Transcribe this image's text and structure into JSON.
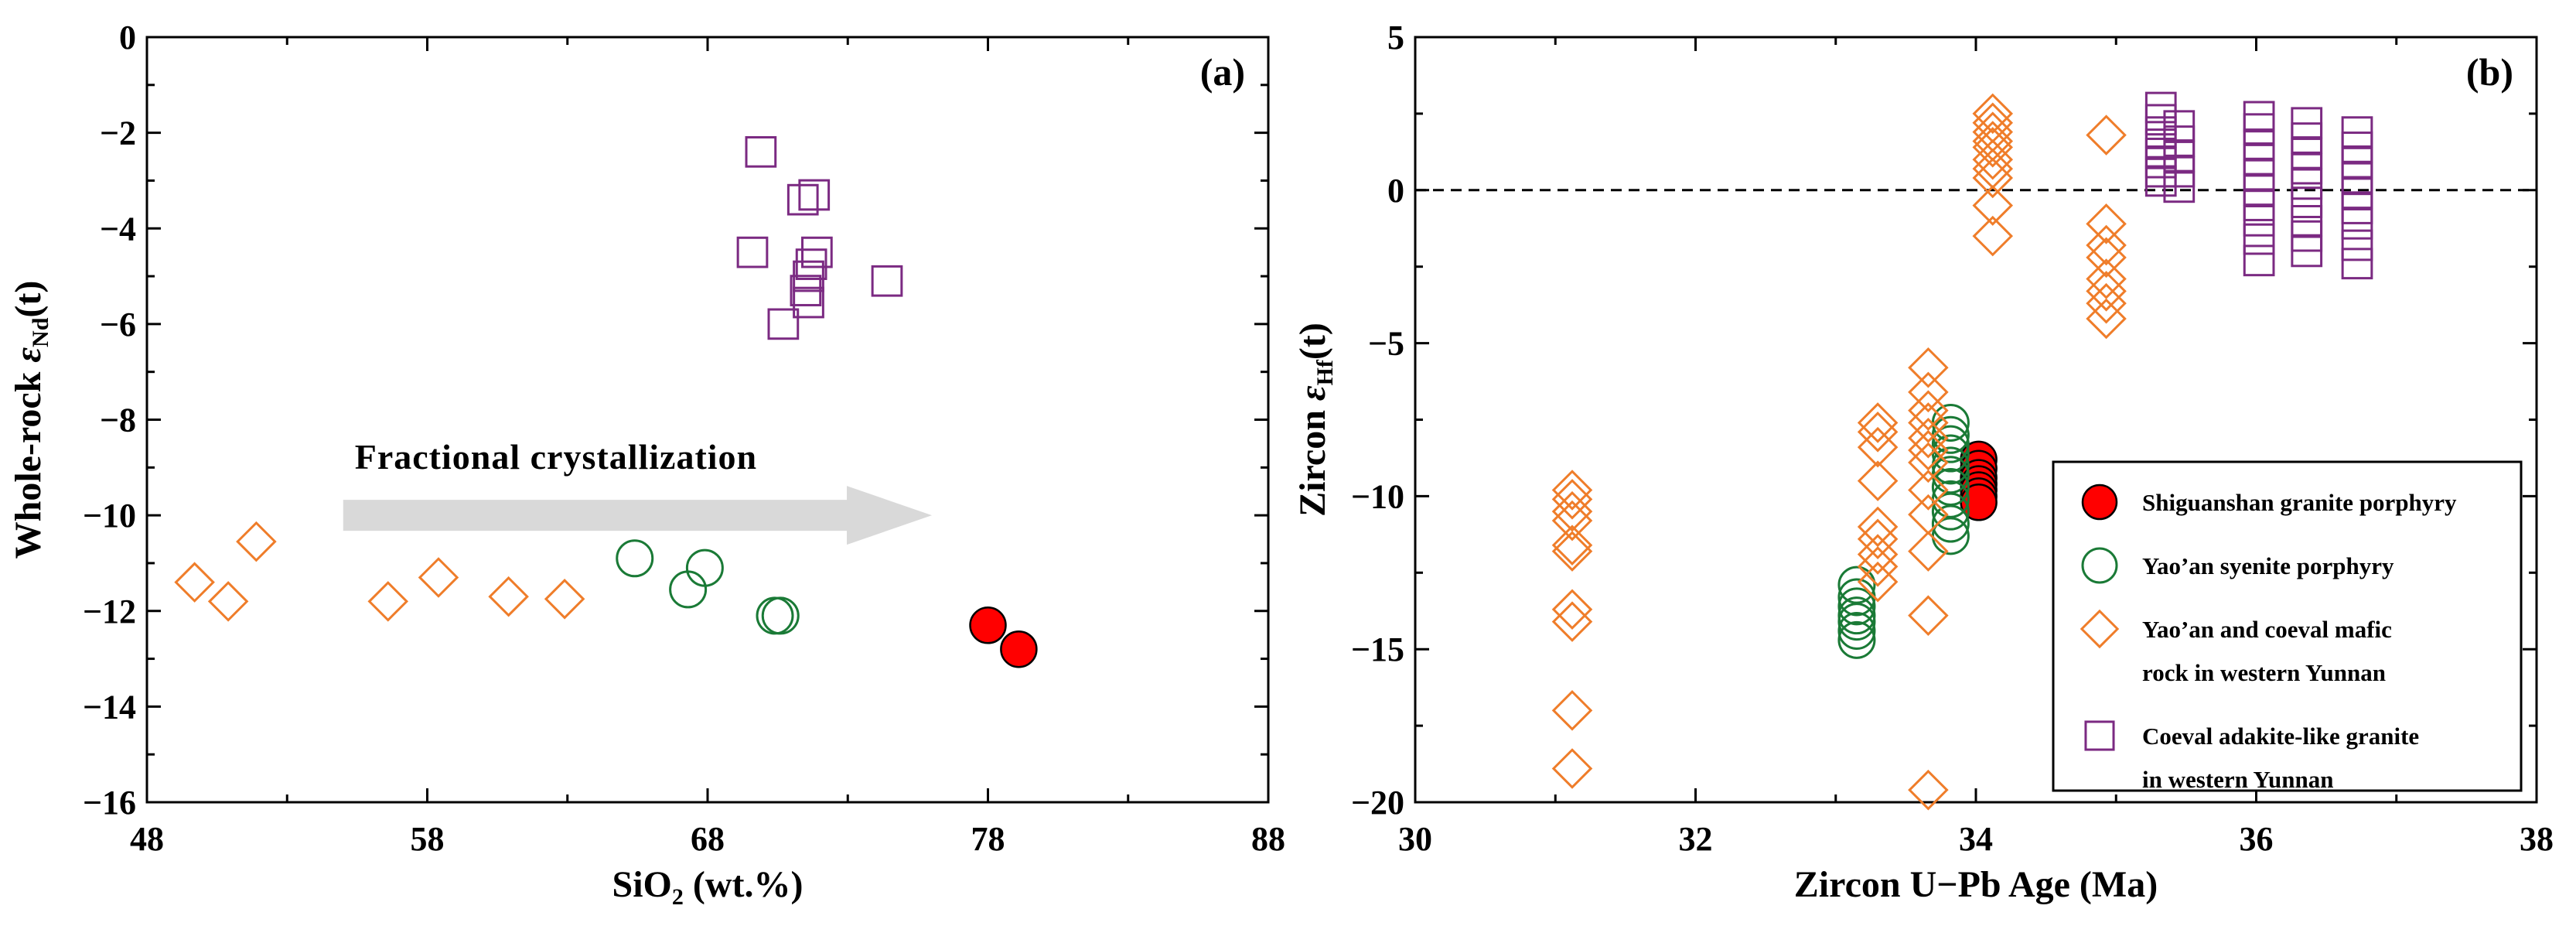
{
  "chart_data": [
    {
      "panel": "a",
      "type": "scatter",
      "panel_label": "(a)",
      "xlabel": {
        "main": "SiO",
        "sub": "2",
        "tail": " (wt.%)"
      },
      "ylabel": {
        "main": "Whole-rock ",
        "eps": "ε",
        "sub": "Nd",
        "tail": "(t)"
      },
      "xlim": [
        48,
        88
      ],
      "ylim": [
        -16,
        0
      ],
      "xticks": [
        48,
        58,
        68,
        78,
        88
      ],
      "yticks": [
        0,
        -2,
        -4,
        -6,
        -8,
        -10,
        -12,
        -14,
        -16
      ],
      "ytick_labels": [
        "0",
        "−2",
        "−4",
        "−6",
        "−8",
        "−10",
        "−12",
        "−14",
        "−16"
      ],
      "annotation": {
        "text": "Fractional crystallization",
        "arrow_from": [
          55,
          -10
        ],
        "arrow_to": [
          76,
          -10
        ]
      },
      "series": [
        {
          "name": "Shiguanshan granite porphyry",
          "marker": "filled-circle",
          "color": "#ff0000",
          "points": [
            [
              78.0,
              -12.3
            ],
            [
              79.1,
              -12.8
            ]
          ]
        },
        {
          "name": "Yao’an syenite porphyry",
          "marker": "circle",
          "color": "#1a7a36",
          "points": [
            [
              65.4,
              -10.9
            ],
            [
              67.3,
              -11.55
            ],
            [
              67.9,
              -11.1
            ],
            [
              70.4,
              -12.1
            ],
            [
              70.6,
              -12.1
            ]
          ]
        },
        {
          "name": "Yao’an and coeval mafic rock in western Yunnan",
          "marker": "diamond",
          "color": "#ef7d2a",
          "points": [
            [
              49.7,
              -11.4
            ],
            [
              50.9,
              -11.8
            ],
            [
              51.9,
              -10.55
            ],
            [
              56.6,
              -11.8
            ],
            [
              58.4,
              -11.3
            ],
            [
              60.9,
              -11.7
            ],
            [
              62.9,
              -11.75
            ]
          ]
        },
        {
          "name": "Coeval adakite-like granite in western Yunnan",
          "marker": "square",
          "color": "#7b2a82",
          "points": [
            [
              69.9,
              -2.4
            ],
            [
              71.4,
              -3.4
            ],
            [
              71.8,
              -3.3
            ],
            [
              69.6,
              -4.5
            ],
            [
              71.9,
              -4.5
            ],
            [
              71.7,
              -4.75
            ],
            [
              71.6,
              -5.0
            ],
            [
              71.5,
              -5.3
            ],
            [
              71.6,
              -5.55
            ],
            [
              74.4,
              -5.1
            ],
            [
              70.7,
              -6.0
            ]
          ]
        }
      ]
    },
    {
      "panel": "b",
      "type": "scatter",
      "panel_label": "(b)",
      "xlabel": {
        "main": "Zircon U−Pb Age (Ma)"
      },
      "ylabel": {
        "main": "Zircon ",
        "eps": "ε",
        "sub": "Hf",
        "tail": "(t)"
      },
      "xlim": [
        30,
        38
      ],
      "ylim": [
        -20,
        5
      ],
      "xticks": [
        30,
        32,
        34,
        36,
        38
      ],
      "yticks": [
        5,
        0,
        -5,
        -10,
        -15,
        -20
      ],
      "ytick_labels": [
        "5",
        "0",
        "−5",
        "−10",
        "−15",
        "−20"
      ],
      "reference_line": {
        "y": 0,
        "style": "dashed"
      },
      "legend": {
        "position": "bottom-right",
        "entries": [
          {
            "marker": "filled-circle",
            "color": "#ff0000",
            "lines": [
              "Shiguanshan granite porphyry"
            ]
          },
          {
            "marker": "circle",
            "color": "#1a7a36",
            "lines": [
              "Yao’an syenite porphyry"
            ]
          },
          {
            "marker": "diamond",
            "color": "#ef7d2a",
            "lines": [
              "Yao’an and coeval mafic",
              "rock in western Yunnan"
            ]
          },
          {
            "marker": "square",
            "color": "#7b2a82",
            "lines": [
              "Coeval adakite-like granite",
              "in western Yunnan"
            ]
          }
        ]
      },
      "series": [
        {
          "name": "Shiguanshan granite porphyry",
          "marker": "filled-circle",
          "color": "#ff0000",
          "points": [
            [
              34.02,
              -8.8
            ],
            [
              34.02,
              -9.1
            ],
            [
              34.02,
              -9.4
            ],
            [
              34.02,
              -9.6
            ],
            [
              34.02,
              -9.8
            ],
            [
              34.02,
              -10.0
            ],
            [
              34.02,
              -10.2
            ]
          ]
        },
        {
          "name": "Yao’an syenite porphyry",
          "marker": "circle",
          "color": "#1a7a36",
          "points": [
            [
              33.15,
              -12.9
            ],
            [
              33.15,
              -13.3
            ],
            [
              33.15,
              -13.6
            ],
            [
              33.15,
              -13.9
            ],
            [
              33.15,
              -14.1
            ],
            [
              33.15,
              -14.4
            ],
            [
              33.15,
              -14.7
            ],
            [
              33.82,
              -7.6
            ],
            [
              33.82,
              -8.0
            ],
            [
              33.82,
              -8.3
            ],
            [
              33.82,
              -8.6
            ],
            [
              33.82,
              -9.0
            ],
            [
              33.82,
              -9.3
            ],
            [
              33.82,
              -9.7
            ],
            [
              33.82,
              -10.1
            ],
            [
              33.82,
              -10.5
            ],
            [
              33.82,
              -10.9
            ],
            [
              33.82,
              -11.3
            ]
          ]
        },
        {
          "name": "Yao’an and coeval mafic rock in western Yunnan",
          "marker": "diamond",
          "color": "#ef7d2a",
          "points": [
            [
              31.12,
              -9.8
            ],
            [
              31.12,
              -10.1
            ],
            [
              31.12,
              -10.5
            ],
            [
              31.12,
              -10.8
            ],
            [
              31.12,
              -11.6
            ],
            [
              31.12,
              -11.8
            ],
            [
              31.12,
              -13.7
            ],
            [
              31.12,
              -14.1
            ],
            [
              31.12,
              -17.0
            ],
            [
              31.12,
              -18.9
            ],
            [
              33.3,
              -7.6
            ],
            [
              33.3,
              -7.9
            ],
            [
              33.3,
              -8.4
            ],
            [
              33.3,
              -9.5
            ],
            [
              33.3,
              -11.0
            ],
            [
              33.3,
              -11.4
            ],
            [
              33.3,
              -11.9
            ],
            [
              33.3,
              -12.3
            ],
            [
              33.3,
              -12.8
            ],
            [
              33.66,
              -5.8
            ],
            [
              33.66,
              -6.6
            ],
            [
              33.66,
              -7.2
            ],
            [
              33.66,
              -7.6
            ],
            [
              33.66,
              -8.1
            ],
            [
              33.66,
              -8.5
            ],
            [
              33.66,
              -8.9
            ],
            [
              33.66,
              -9.8
            ],
            [
              33.66,
              -10.6
            ],
            [
              33.66,
              -11.8
            ],
            [
              33.66,
              -13.9
            ],
            [
              33.66,
              -19.6
            ],
            [
              34.12,
              2.5
            ],
            [
              34.12,
              2.2
            ],
            [
              34.12,
              1.9
            ],
            [
              34.12,
              1.6
            ],
            [
              34.12,
              1.4
            ],
            [
              34.12,
              1.0
            ],
            [
              34.12,
              0.7
            ],
            [
              34.12,
              0.4
            ],
            [
              34.12,
              -0.5
            ],
            [
              34.12,
              -1.5
            ],
            [
              34.93,
              1.8
            ],
            [
              34.93,
              -1.1
            ],
            [
              34.93,
              -1.8
            ],
            [
              34.93,
              -2.2
            ],
            [
              34.93,
              -2.9
            ],
            [
              34.93,
              -3.3
            ],
            [
              34.93,
              -3.7
            ],
            [
              34.93,
              -4.2
            ]
          ]
        },
        {
          "name": "Coeval adakite-like granite in western Yunnan",
          "marker": "square",
          "color": "#7b2a82",
          "points": [
            [
              35.32,
              2.7
            ],
            [
              35.32,
              2.3
            ],
            [
              35.32,
              1.9
            ],
            [
              35.32,
              1.5
            ],
            [
              35.32,
              1.2
            ],
            [
              35.32,
              0.9
            ],
            [
              35.32,
              0.6
            ],
            [
              35.32,
              0.3
            ],
            [
              35.45,
              2.1
            ],
            [
              35.45,
              1.6
            ],
            [
              35.45,
              1.1
            ],
            [
              35.45,
              0.6
            ],
            [
              35.45,
              0.1
            ],
            [
              36.02,
              2.4
            ],
            [
              36.02,
              2.0
            ],
            [
              36.02,
              1.5
            ],
            [
              36.02,
              1.0
            ],
            [
              36.02,
              0.5
            ],
            [
              36.02,
              0.0
            ],
            [
              36.02,
              -0.5
            ],
            [
              36.02,
              -1.0
            ],
            [
              36.02,
              -1.6
            ],
            [
              36.02,
              -2.3
            ],
            [
              36.36,
              2.2
            ],
            [
              36.36,
              1.7
            ],
            [
              36.36,
              1.2
            ],
            [
              36.36,
              0.7
            ],
            [
              36.36,
              0.2
            ],
            [
              36.36,
              -0.4
            ],
            [
              36.36,
              -1.0
            ],
            [
              36.36,
              -1.5
            ],
            [
              36.36,
              -2.0
            ],
            [
              36.72,
              1.9
            ],
            [
              36.72,
              1.4
            ],
            [
              36.72,
              0.9
            ],
            [
              36.72,
              0.4
            ],
            [
              36.72,
              -0.1
            ],
            [
              36.72,
              -0.6
            ],
            [
              36.72,
              -1.1
            ],
            [
              36.72,
              -1.8
            ],
            [
              36.72,
              -2.4
            ]
          ]
        }
      ]
    }
  ]
}
